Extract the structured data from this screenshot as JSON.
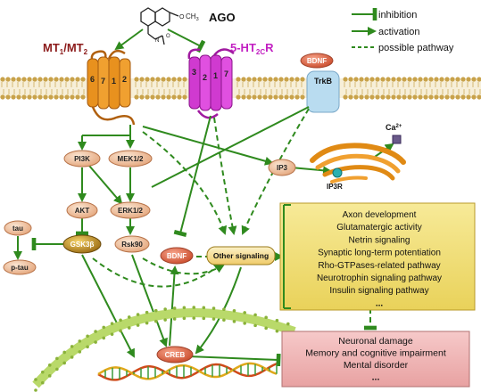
{
  "colors": {
    "green": "#2f8a1e",
    "membrane": "#c8a24a",
    "mt_receptor": "#e8911e",
    "ht_receptor": "#d03ad0",
    "node_fill": "#f2c9a8",
    "box_fill": "#f3e27a",
    "outcome_fill": "#f1b6b6",
    "trkb_fill": "#b9dcf0",
    "title_red": "#8b1a1a",
    "title_magenta": "#c21fc2"
  },
  "molecule": {
    "name": "AGO",
    "substituent": "CH",
    "subscript": "3"
  },
  "receptors": {
    "mt": {
      "prefix": "MT",
      "sub1": "1",
      "slash": "/MT",
      "sub2": "2",
      "helix_labels": [
        "6",
        "7",
        "1",
        "2"
      ]
    },
    "ht": {
      "prefix": "5-HT",
      "sub": "2C",
      "suffix": "R",
      "helix_labels": [
        "3",
        "2",
        "1",
        "7"
      ]
    },
    "bdnf_top": "BDNF",
    "trkb": "TrkB"
  },
  "legend": {
    "inhibition": "inhibition",
    "activation": "activation",
    "possible": "possible pathway"
  },
  "nodes": {
    "pi3k": "PI3K",
    "mek": "MEK1/2",
    "ip3": "IP3",
    "ip3r": "IP3R",
    "ca": "Ca",
    "ca_sup": "2+",
    "akt": "AKT",
    "erk": "ERK1/2",
    "tau": "tau",
    "gsk": "GSK3β",
    "ptau": "p-tau",
    "rsk": "Rsk90",
    "bdnf": "BDNF",
    "other": "Other signaling",
    "creb": "CREB"
  },
  "effects_box": [
    "Axon development",
    "Glutamatergic activity",
    "Netrin signaling",
    "Synaptic long-term potentiation",
    "Rho-GTPases-related pathway",
    "Neurotrophin signaling pathway",
    "Insulin signaling pathway",
    "..."
  ],
  "outcomes_box": [
    "Neuronal damage",
    "Memory and cognitive impairment",
    "Mental disorder",
    "..."
  ]
}
